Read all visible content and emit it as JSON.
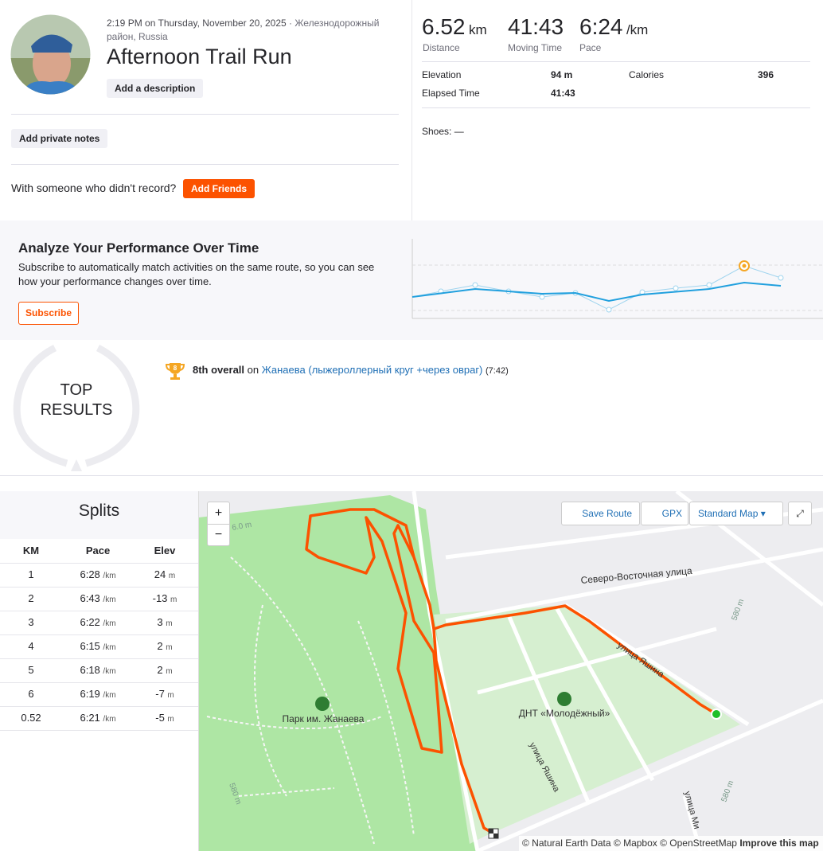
{
  "activity": {
    "timestamp": "2:19 PM on Thursday, November 20, 2025",
    "location": "· Железнодорожный район, Russia",
    "title": "Afternoon Trail Run",
    "add_description": "Add a description",
    "add_private_notes": "Add private notes",
    "with_someone": "With someone who didn't record?",
    "add_friends": "Add Friends"
  },
  "stats": {
    "primary": [
      {
        "value": "6.52",
        "unit": "km",
        "label": "Distance"
      },
      {
        "value": "41:43",
        "label": "Moving Time"
      },
      {
        "value": "6:24",
        "unit": "/km",
        "label": "Pace"
      }
    ],
    "secondary": [
      {
        "label": "Elevation",
        "value": "94 m"
      },
      {
        "label": "Calories",
        "value": "396"
      },
      {
        "label": "Elapsed Time",
        "value": "41:43"
      }
    ],
    "shoes": "Shoes: —"
  },
  "analyze": {
    "title": "Analyze Your Performance Over Time",
    "text": "Subscribe to automatically match activities on the same route, so you can see how your performance changes over time.",
    "button": "Subscribe"
  },
  "top_results": {
    "badge": "TOP RESULTS",
    "trophy_rank": "8",
    "rank": "8th overall",
    "connector": "on",
    "segment": "Жанаева (лыжероллерный круг +через овраг)",
    "time": "(7:42)"
  },
  "splits": {
    "title": "Splits",
    "columns": [
      "KM",
      "Pace",
      "Elev"
    ],
    "rows": [
      {
        "km": "1",
        "pace": "6:28",
        "pace_unit": "/km",
        "elev": "24",
        "elev_unit": "m"
      },
      {
        "km": "2",
        "pace": "6:43",
        "pace_unit": "/km",
        "elev": "-13",
        "elev_unit": "m"
      },
      {
        "km": "3",
        "pace": "6:22",
        "pace_unit": "/km",
        "elev": "3",
        "elev_unit": "m"
      },
      {
        "km": "4",
        "pace": "6:15",
        "pace_unit": "/km",
        "elev": "2",
        "elev_unit": "m"
      },
      {
        "km": "5",
        "pace": "6:18",
        "pace_unit": "/km",
        "elev": "2",
        "elev_unit": "m"
      },
      {
        "km": "6",
        "pace": "6:19",
        "pace_unit": "/km",
        "elev": "-7",
        "elev_unit": "m"
      },
      {
        "km": "0.52",
        "pace": "6:21",
        "pace_unit": "/km",
        "elev": "-5",
        "elev_unit": "m"
      }
    ]
  },
  "map": {
    "zoom_in": "+",
    "zoom_out": "−",
    "save_route": "Save Route",
    "gpx": "GPX",
    "map_style": "Standard Map",
    "labels": {
      "street_ne": "Северо-Восточная улица",
      "street_yashina": "улица Яшина",
      "street_yashina_2": "улица Яшина",
      "street_min": "улица Ми",
      "park": "Парк им. Жанаева",
      "dnt": "ДНТ «Молодёжный»",
      "contour_1": "580 m",
      "contour_2": "580 m",
      "contour_3": "580 m",
      "contour_4": "6.0 m"
    },
    "attribution": "© Natural Earth Data © Mapbox © OpenStreetMap",
    "improve": "Improve this map"
  }
}
